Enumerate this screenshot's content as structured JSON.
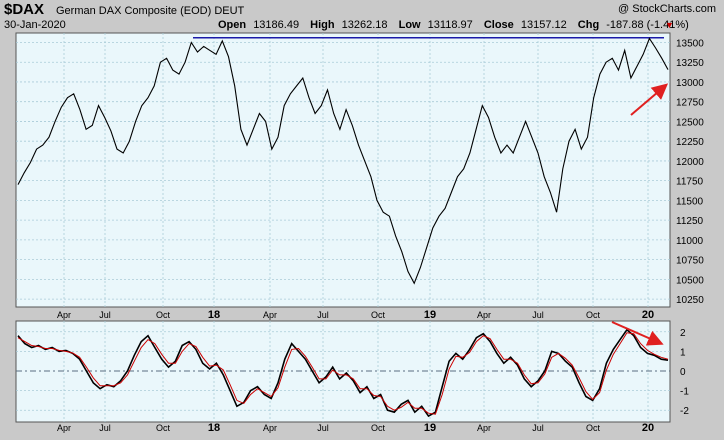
{
  "header": {
    "symbol": "$DAX",
    "name": "German DAX Composite (EOD) DEUT",
    "watermark": "@ StockCharts.com",
    "date": "30-Jan-2020",
    "open_label": "Open",
    "open_value": "13186.49",
    "high_label": "High",
    "high_value": "13262.18",
    "low_label": "Low",
    "low_value": "13118.97",
    "close_label": "Close",
    "close_value": "13157.12",
    "chg_label": "Chg",
    "chg_value": "-187.88 (-1.41%)",
    "down_marker": "▼"
  },
  "chart_data": [
    {
      "type": "line",
      "title": "German DAX Composite (EOD) DEUT",
      "x_ticks": [
        "Apr",
        "Jul",
        "Oct",
        "18",
        "Apr",
        "Jul",
        "Oct",
        "19",
        "Apr",
        "Jul",
        "Oct",
        "20"
      ],
      "x_tick_major": [
        false,
        false,
        false,
        true,
        false,
        false,
        false,
        true,
        false,
        false,
        false,
        true
      ],
      "ylim": [
        10150,
        13620
      ],
      "y_ticks": [
        10250,
        10500,
        10750,
        11000,
        11250,
        11500,
        11750,
        12000,
        12250,
        12500,
        12750,
        13000,
        13250,
        13500
      ],
      "grid": true,
      "resistance_level": 13560,
      "series": [
        {
          "values": [
            11700,
            11850,
            11980,
            12150,
            12200,
            12300,
            12500,
            12680,
            12800,
            12850,
            12650,
            12400,
            12450,
            12700,
            12550,
            12380,
            12150,
            12100,
            12250,
            12500,
            12700,
            12800,
            12950,
            13250,
            13300,
            13150,
            13100,
            13250,
            13500,
            13380,
            13450,
            13400,
            13350,
            13520,
            13320,
            12950,
            12400,
            12200,
            12400,
            12600,
            12500,
            12150,
            12300,
            12700,
            12850,
            12950,
            13050,
            12800,
            12600,
            12700,
            12900,
            12600,
            12400,
            12650,
            12450,
            12200,
            12000,
            11800,
            11500,
            11350,
            11300,
            11050,
            10850,
            10600,
            10450,
            10650,
            10900,
            11150,
            11300,
            11400,
            11600,
            11800,
            11900,
            12100,
            12400,
            12700,
            12550,
            12300,
            12100,
            12200,
            12100,
            12300,
            12500,
            12300,
            12100,
            11800,
            11600,
            11350,
            11900,
            12250,
            12400,
            12150,
            12300,
            12800,
            13100,
            13250,
            13300,
            13150,
            13400,
            13050,
            13200,
            13350,
            13550,
            13430,
            13300,
            13157
          ]
        }
      ]
    },
    {
      "type": "line",
      "title": "",
      "ylim": [
        -2.6,
        2.55
      ],
      "y_ticks": [
        -2,
        -1,
        0,
        1,
        2
      ],
      "reference_level": 0,
      "series": [
        {
          "color": "#000000",
          "values": [
            1.8,
            1.4,
            1.2,
            1.3,
            1.1,
            1.2,
            1.0,
            1.05,
            0.9,
            0.6,
            0.0,
            -0.6,
            -0.9,
            -0.7,
            -0.8,
            -0.5,
            0.0,
            0.8,
            1.5,
            1.8,
            1.2,
            0.6,
            0.2,
            0.5,
            1.3,
            1.5,
            1.1,
            0.4,
            0.1,
            0.4,
            -0.2,
            -1.0,
            -1.8,
            -1.6,
            -1.0,
            -0.8,
            -1.2,
            -1.4,
            -0.6,
            0.6,
            1.4,
            1.0,
            0.6,
            0.0,
            -0.6,
            -0.3,
            0.2,
            -0.4,
            -0.1,
            -0.5,
            -1.1,
            -0.8,
            -1.4,
            -1.2,
            -2.0,
            -2.1,
            -1.7,
            -1.5,
            -2.1,
            -1.8,
            -2.3,
            -2.1,
            -0.8,
            0.5,
            0.9,
            0.6,
            1.1,
            1.7,
            1.9,
            1.5,
            0.9,
            0.4,
            0.7,
            0.3,
            -0.4,
            -0.8,
            -0.5,
            0.0,
            1.0,
            0.9,
            0.5,
            0.2,
            -0.6,
            -1.3,
            -1.5,
            -0.9,
            0.4,
            1.1,
            1.6,
            2.1,
            1.8,
            1.2,
            0.9,
            0.8,
            0.6,
            0.55
          ]
        },
        {
          "color": "#cc0000",
          "values": [
            1.7,
            1.5,
            1.3,
            1.25,
            1.15,
            1.15,
            1.05,
            1.0,
            0.92,
            0.7,
            0.2,
            -0.35,
            -0.75,
            -0.75,
            -0.75,
            -0.6,
            -0.2,
            0.5,
            1.2,
            1.6,
            1.4,
            0.85,
            0.4,
            0.4,
            1.0,
            1.4,
            1.25,
            0.7,
            0.25,
            0.3,
            0.05,
            -0.7,
            -1.5,
            -1.65,
            -1.2,
            -0.9,
            -1.1,
            -1.3,
            -0.85,
            0.2,
            1.1,
            1.15,
            0.75,
            0.2,
            -0.4,
            -0.4,
            0.05,
            -0.2,
            -0.2,
            -0.4,
            -0.9,
            -0.9,
            -1.25,
            -1.3,
            -1.8,
            -2.0,
            -1.85,
            -1.6,
            -1.9,
            -1.9,
            -2.15,
            -2.2,
            -1.2,
            0.1,
            0.75,
            0.7,
            0.95,
            1.5,
            1.8,
            1.65,
            1.1,
            0.6,
            0.6,
            0.4,
            -0.2,
            -0.65,
            -0.6,
            -0.15,
            0.7,
            0.9,
            0.65,
            0.3,
            -0.35,
            -1.05,
            -1.45,
            -1.1,
            0.05,
            0.85,
            1.4,
            1.95,
            1.9,
            1.4,
            1.05,
            0.85,
            0.7,
            0.6
          ]
        }
      ],
      "x_ticks": [
        "Apr",
        "Jul",
        "Oct",
        "18",
        "Apr",
        "Jul",
        "Oct",
        "19",
        "Apr",
        "Jul",
        "Oct",
        "20"
      ]
    }
  ]
}
